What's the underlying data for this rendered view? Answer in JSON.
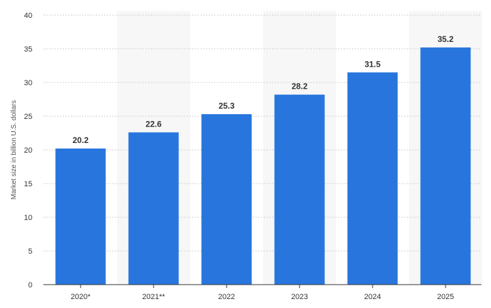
{
  "chart_data": {
    "type": "bar",
    "title": "",
    "xlabel": "",
    "ylabel": "Market size in billion U.S. dollars",
    "categories": [
      "2020*",
      "2021**",
      "2022",
      "2023",
      "2024",
      "2025"
    ],
    "values": [
      20.2,
      22.6,
      25.3,
      28.2,
      31.5,
      35.2
    ],
    "value_labels": [
      "20.2",
      "22.6",
      "25.3",
      "28.2",
      "31.5",
      "35.2"
    ],
    "ylim": [
      0,
      40
    ],
    "yticks": [
      "0",
      "5",
      "10",
      "15",
      "20",
      "25",
      "30",
      "35",
      "40"
    ],
    "grid": "horizontal dotted",
    "alternating_column_shading": true,
    "colors": {
      "bar": "#2876dd",
      "shade": "#f7f7f7",
      "grid": "#cfcfcf",
      "axis": "#333333"
    }
  }
}
